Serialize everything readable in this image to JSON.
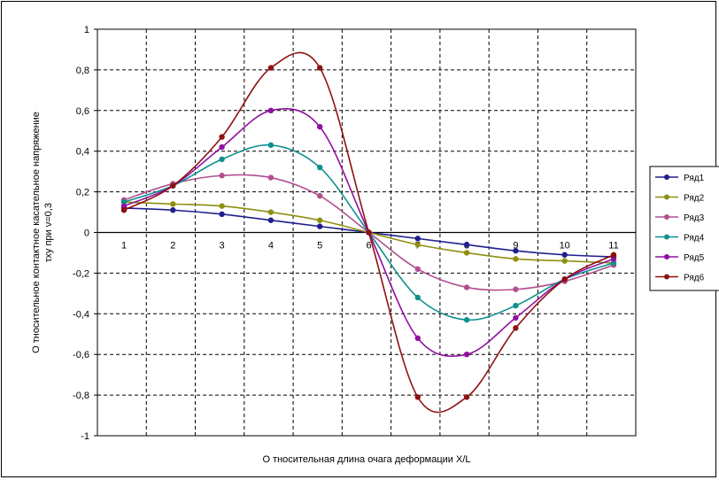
{
  "chart_data": {
    "type": "line",
    "title": "",
    "xlabel": "О тносительная длина очага деформации X/L",
    "ylabel_line1": "О тносительное контактное касательное напряжение",
    "ylabel_line2": "τxy при ν=0,3",
    "x": [
      1,
      2,
      3,
      4,
      5,
      6,
      7,
      8,
      9,
      10,
      11
    ],
    "x_tick_labels": [
      "1",
      "2",
      "3",
      "4",
      "5",
      "6",
      "7",
      "8",
      "9",
      "10",
      "11"
    ],
    "ylim": [
      -1,
      1
    ],
    "y_tick_labels": [
      "1",
      "0,8",
      "0,6",
      "0,4",
      "0,2",
      "0",
      "-0,2",
      "-0,4",
      "-0,6",
      "-0,8",
      "-1"
    ],
    "grid": true,
    "legend_position": "right",
    "series": [
      {
        "name": "Ряд1",
        "color": "#1f1f8f",
        "values": [
          0.12,
          0.11,
          0.09,
          0.06,
          0.03,
          0,
          -0.03,
          -0.06,
          -0.09,
          -0.11,
          -0.12
        ]
      },
      {
        "name": "Ряд2",
        "color": "#8f8f10",
        "values": [
          0.15,
          0.14,
          0.13,
          0.1,
          0.06,
          0,
          -0.06,
          -0.1,
          -0.13,
          -0.14,
          -0.15
        ]
      },
      {
        "name": "Ряд3",
        "color": "#b0508f",
        "values": [
          0.16,
          0.24,
          0.28,
          0.27,
          0.18,
          0,
          -0.18,
          -0.27,
          -0.28,
          -0.24,
          -0.16
        ]
      },
      {
        "name": "Ряд4",
        "color": "#10908f",
        "values": [
          0.15,
          0.23,
          0.36,
          0.43,
          0.32,
          0,
          -0.32,
          -0.43,
          -0.36,
          -0.23,
          -0.15
        ]
      },
      {
        "name": "Ряд5",
        "color": "#9010a0",
        "values": [
          0.13,
          0.23,
          0.42,
          0.6,
          0.52,
          0,
          -0.52,
          -0.6,
          -0.42,
          -0.23,
          -0.13
        ]
      },
      {
        "name": "Ряд6",
        "color": "#8f1010",
        "values": [
          0.11,
          0.23,
          0.47,
          0.81,
          0.81,
          0,
          -0.81,
          -0.81,
          -0.47,
          -0.23,
          -0.11
        ]
      }
    ]
  }
}
